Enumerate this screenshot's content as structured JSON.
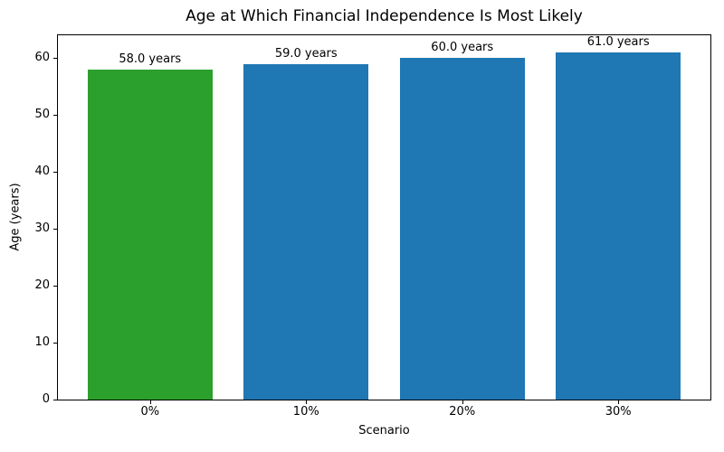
{
  "chart_data": {
    "type": "bar",
    "title": "Age at Which Financial Independence Is Most Likely",
    "xlabel": "Scenario",
    "ylabel": "Age (years)",
    "categories": [
      "0%",
      "10%",
      "20%",
      "30%"
    ],
    "values": [
      58.0,
      59.0,
      60.0,
      61.0
    ],
    "bar_labels": [
      "58.0 years",
      "59.0 years",
      "60.0 years",
      "61.0 years"
    ],
    "bar_colors": [
      "#2ca02c",
      "#1f77b4",
      "#1f77b4",
      "#1f77b4"
    ],
    "ylim": [
      0,
      64.05
    ],
    "yticks": [
      0,
      10,
      20,
      30,
      40,
      50,
      60
    ],
    "bar_width_ratio": 0.8,
    "grid": false,
    "legend": "none"
  },
  "colors": {
    "background": "#ffffff",
    "axis": "#000000",
    "text": "#000000"
  }
}
